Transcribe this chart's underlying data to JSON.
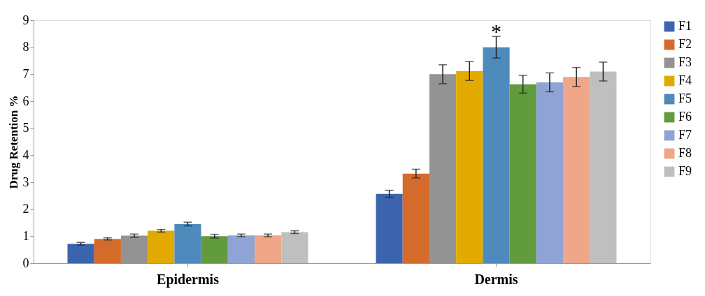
{
  "chart_data": {
    "type": "bar",
    "ylabel": "Drug Retention %",
    "categories": [
      "Epidermis",
      "Dermis"
    ],
    "series": [
      {
        "name": "F1",
        "color": "#3c64ae",
        "values": [
          0.72,
          2.57
        ],
        "errors": [
          0.05,
          0.13
        ]
      },
      {
        "name": "F2",
        "color": "#d46b2a",
        "values": [
          0.9,
          3.32
        ],
        "errors": [
          0.04,
          0.16
        ]
      },
      {
        "name": "F3",
        "color": "#939393",
        "values": [
          1.02,
          7.0
        ],
        "errors": [
          0.06,
          0.35
        ]
      },
      {
        "name": "F4",
        "color": "#e2aa00",
        "values": [
          1.2,
          7.12
        ],
        "errors": [
          0.05,
          0.35
        ]
      },
      {
        "name": "F5",
        "color": "#4f8abd",
        "values": [
          1.45,
          8.0
        ],
        "errors": [
          0.07,
          0.4
        ]
      },
      {
        "name": "F6",
        "color": "#629a3e",
        "values": [
          1.0,
          6.63
        ],
        "errors": [
          0.07,
          0.33
        ]
      },
      {
        "name": "F7",
        "color": "#8fa4d4",
        "values": [
          1.03,
          6.7
        ],
        "errors": [
          0.05,
          0.35
        ]
      },
      {
        "name": "F8",
        "color": "#f0a689",
        "values": [
          1.03,
          6.9
        ],
        "errors": [
          0.05,
          0.35
        ]
      },
      {
        "name": "F9",
        "color": "#bfbfbf",
        "values": [
          1.15,
          7.1
        ],
        "errors": [
          0.05,
          0.35
        ]
      }
    ],
    "ylim": [
      0,
      9
    ],
    "yticks": [
      0,
      1,
      2,
      3,
      4,
      5,
      6,
      7,
      8,
      9
    ],
    "grid": false,
    "legend": "right",
    "annotations": [
      {
        "text": "*",
        "x": "Dermis",
        "y": 8.55
      }
    ]
  }
}
